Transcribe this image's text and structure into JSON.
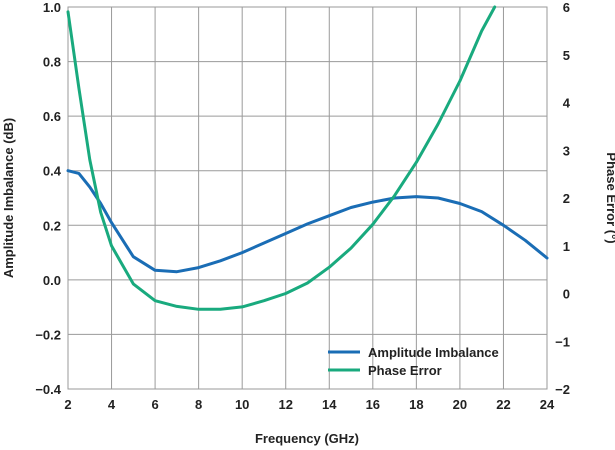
{
  "chart_data": {
    "type": "line",
    "title": "",
    "xlabel": "Frequency (GHz)",
    "ylabel_left": "Amplitude Imbalance (dB)",
    "ylabel_right": "Phase Error (°)",
    "xlim": [
      2,
      24
    ],
    "ylim_left": [
      -0.4,
      1.0
    ],
    "ylim_right": [
      -2,
      6
    ],
    "x_ticks": [
      "2",
      "4",
      "6",
      "8",
      "10",
      "12",
      "14",
      "16",
      "18",
      "20",
      "22",
      "24"
    ],
    "y_left_ticks": [
      "1.0",
      "0.8",
      "0.6",
      "0.4",
      "0.2",
      "0.0",
      "−0.2",
      "−0.4"
    ],
    "y_right_ticks": [
      "6",
      "5",
      "4",
      "3",
      "2",
      "1",
      "0",
      "−1",
      "−2"
    ],
    "grid": true,
    "legend_position": "bottom-right",
    "series": [
      {
        "name": "Amplitude Imbalance",
        "axis": "left",
        "color": "#1a6db5",
        "x": [
          2.0,
          2.5,
          3.0,
          3.5,
          4.0,
          5.0,
          6.0,
          7.0,
          8.0,
          9.0,
          10.0,
          11.0,
          12.0,
          13.0,
          14.0,
          15.0,
          16.0,
          17.0,
          18.0,
          19.0,
          20.0,
          21.0,
          22.0,
          23.0,
          24.0
        ],
        "y": [
          0.4,
          0.39,
          0.34,
          0.28,
          0.21,
          0.085,
          0.035,
          0.03,
          0.045,
          0.07,
          0.1,
          0.135,
          0.17,
          0.205,
          0.235,
          0.265,
          0.285,
          0.3,
          0.305,
          0.3,
          0.28,
          0.25,
          0.2,
          0.145,
          0.08
        ]
      },
      {
        "name": "Phase Error",
        "axis": "right",
        "color": "#19aa7e",
        "x": [
          2.0,
          2.5,
          3.0,
          3.5,
          4.0,
          4.5,
          5.0,
          6.0,
          7.0,
          8.0,
          9.0,
          10.0,
          11.0,
          12.0,
          13.0,
          14.0,
          15.0,
          16.0,
          17.0,
          18.0,
          19.0,
          20.0,
          21.0,
          21.6
        ],
        "y": [
          5.9,
          4.3,
          2.8,
          1.7,
          1.0,
          0.6,
          0.2,
          -0.15,
          -0.27,
          -0.33,
          -0.33,
          -0.28,
          -0.15,
          0.0,
          0.22,
          0.55,
          0.95,
          1.45,
          2.05,
          2.75,
          3.55,
          4.45,
          5.5,
          6.0
        ]
      }
    ]
  }
}
